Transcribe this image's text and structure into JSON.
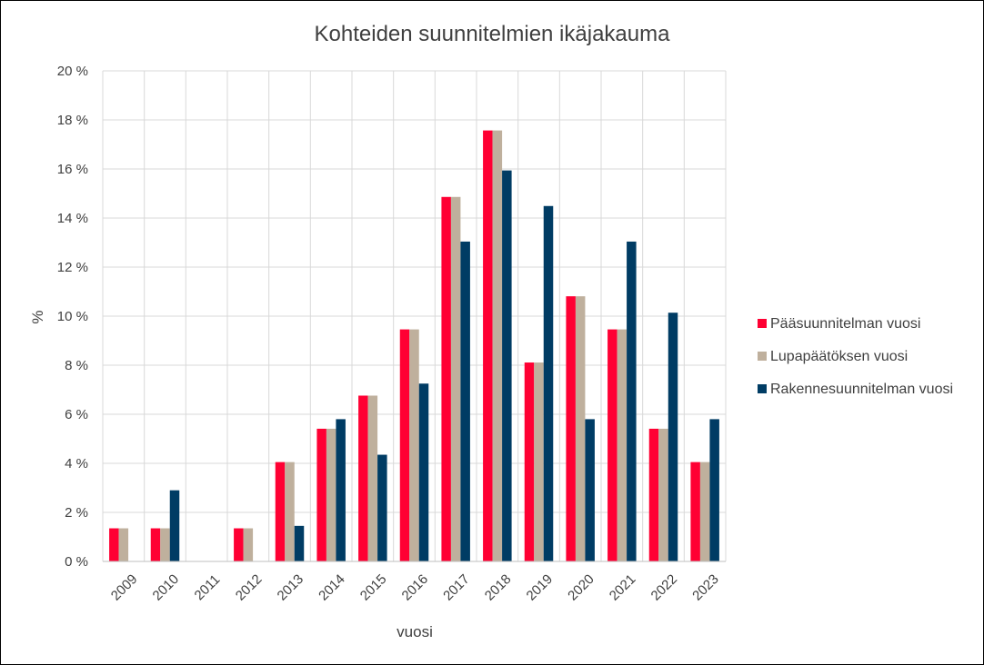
{
  "chart_data": {
    "type": "bar",
    "title": "Kohteiden suunnitelmien ikäjakauma",
    "xlabel": "vuosi",
    "ylabel": "%",
    "ylim": [
      0,
      20
    ],
    "ytick_step": 2,
    "ytick_labels": [
      "0 %",
      "2 %",
      "4 %",
      "6 %",
      "8 %",
      "10 %",
      "12 %",
      "14 %",
      "16 %",
      "18 %",
      "20 %"
    ],
    "grid": true,
    "legend_position": "right",
    "categories": [
      "2009",
      "2010",
      "2011",
      "2012",
      "2013",
      "2014",
      "2015",
      "2016",
      "2017",
      "2018",
      "2019",
      "2020",
      "2021",
      "2022",
      "2023"
    ],
    "series": [
      {
        "name": "Pääsuunnitelman vuosi",
        "color": "#ff0033",
        "values": [
          1.35,
          1.35,
          0,
          1.35,
          4.05,
          5.41,
          6.76,
          9.46,
          14.86,
          17.57,
          8.11,
          10.81,
          9.46,
          5.41,
          4.05
        ]
      },
      {
        "name": "Lupapäätöksen vuosi",
        "color": "#bfb09d",
        "values": [
          1.35,
          1.35,
          0,
          1.35,
          4.05,
          5.41,
          6.76,
          9.46,
          14.86,
          17.57,
          8.11,
          10.81,
          9.46,
          5.41,
          4.05
        ]
      },
      {
        "name": "Rakennesuunnitelman vuosi",
        "color": "#003c64",
        "values": [
          0,
          2.9,
          0,
          0,
          1.45,
          5.8,
          4.35,
          7.25,
          13.04,
          15.94,
          14.49,
          5.8,
          13.04,
          10.14,
          5.8
        ]
      }
    ]
  }
}
